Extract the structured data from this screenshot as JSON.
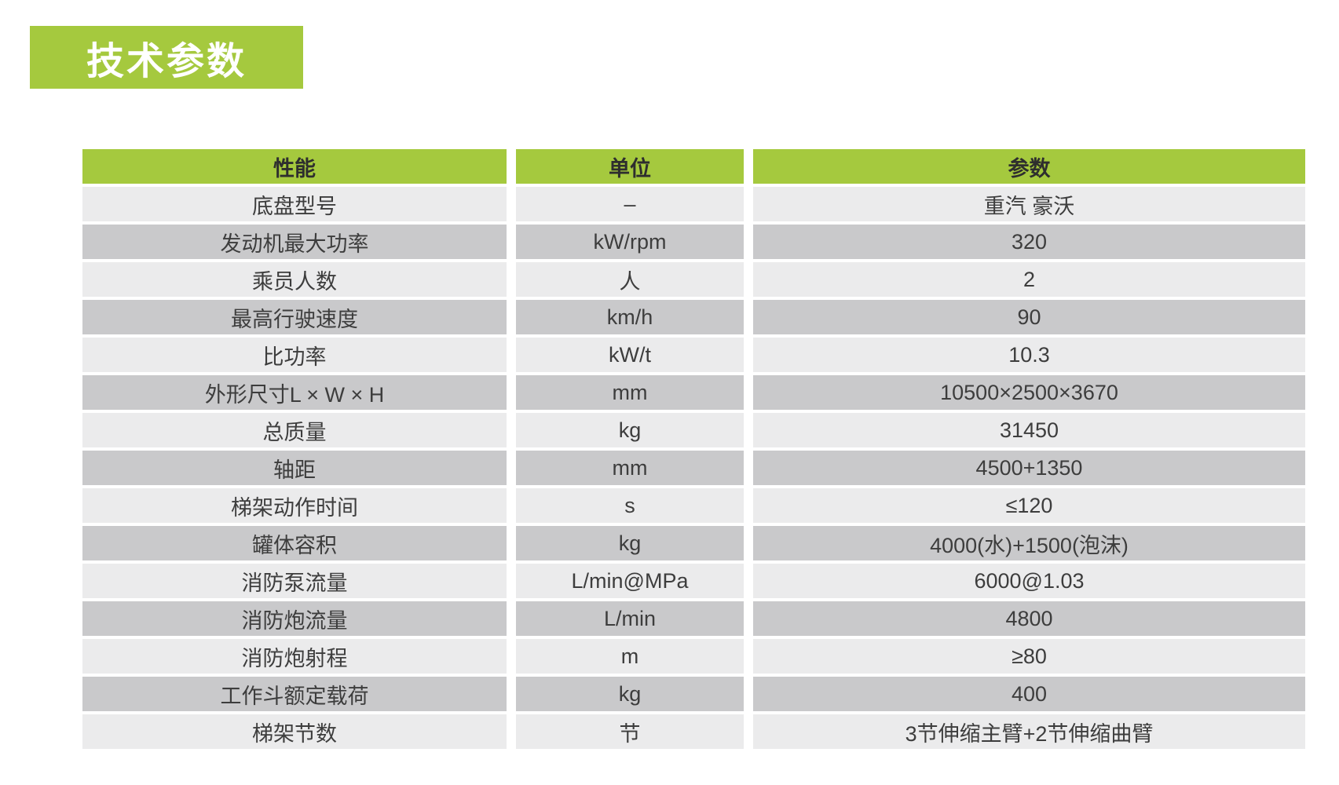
{
  "page": {
    "background": "#ffffff"
  },
  "title": {
    "text": "技术参数",
    "background": "#a5c93e",
    "color": "#ffffff"
  },
  "table": {
    "header": {
      "background": "#a5c93e",
      "columns": [
        "性能",
        "单位",
        "参数"
      ]
    },
    "row_colors": {
      "light": "#ebebec",
      "dark": "#c9c9cb"
    },
    "rows": [
      {
        "name": "底盘型号",
        "unit": "–",
        "value": "重汽 豪沃"
      },
      {
        "name": "发动机最大功率",
        "unit": "kW/rpm",
        "value": "320"
      },
      {
        "name": "乘员人数",
        "unit": "人",
        "value": "2"
      },
      {
        "name": "最高行驶速度",
        "unit": "km/h",
        "value": "90"
      },
      {
        "name": "比功率",
        "unit": "kW/t",
        "value": "10.3"
      },
      {
        "name": "外形尺寸L × W × H",
        "unit": "mm",
        "value": "10500×2500×3670"
      },
      {
        "name": "总质量",
        "unit": "kg",
        "value": "31450"
      },
      {
        "name": "轴距",
        "unit": "mm",
        "value": "4500+1350"
      },
      {
        "name": "梯架动作时间",
        "unit": "s",
        "value": "≤120"
      },
      {
        "name": "罐体容积",
        "unit": "kg",
        "value": "4000(水)+1500(泡沫)"
      },
      {
        "name": "消防泵流量",
        "unit": "L/min@MPa",
        "value": "6000@1.03"
      },
      {
        "name": "消防炮流量",
        "unit": "L/min",
        "value": "4800"
      },
      {
        "name": "消防炮射程",
        "unit": "m",
        "value": "≥80"
      },
      {
        "name": "工作斗额定载荷",
        "unit": "kg",
        "value": "400"
      },
      {
        "name": "梯架节数",
        "unit": "节",
        "value": "3节伸缩主臂+2节伸缩曲臂"
      }
    ]
  }
}
